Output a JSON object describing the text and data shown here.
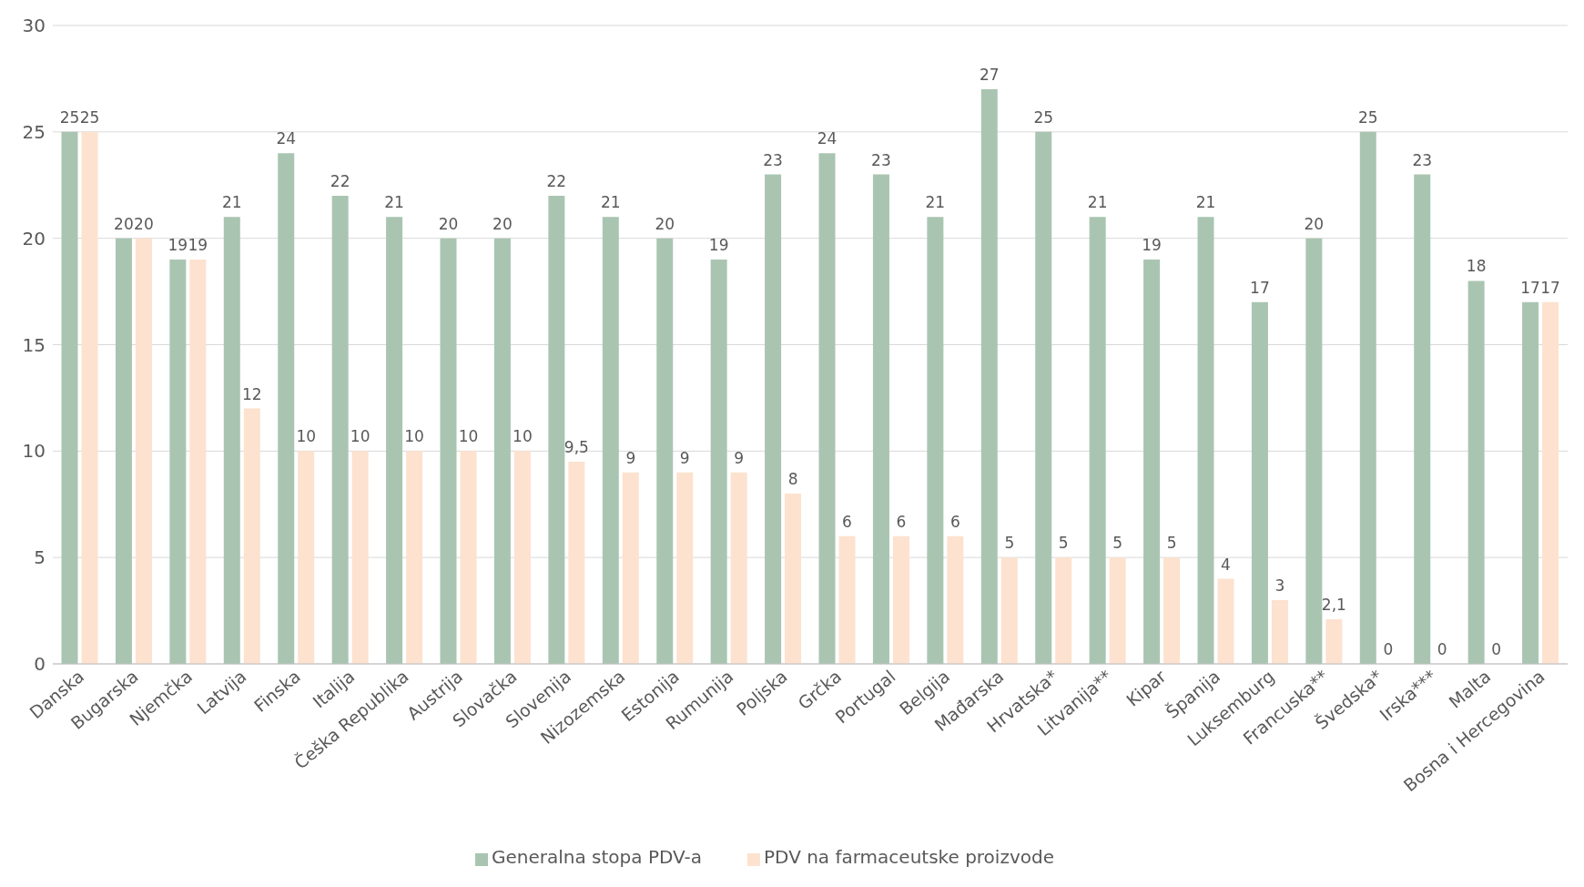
{
  "chart_data": {
    "type": "bar",
    "categories": [
      "Danska",
      "Bugarska",
      "Njemčka",
      "Latvija",
      "Finska",
      "Italija",
      "Češka Republika",
      "Austrija",
      "Slovačka",
      "Slovenija",
      "Nizozemska",
      "Estonija",
      "Rumunija",
      "Poljska",
      "Grčka",
      "Portugal",
      "Belgija",
      "Mađarska",
      "Hrvatska*",
      "Litvanija**",
      "Kipar",
      "Španija",
      "Luksemburg",
      "Francuska**",
      "Švedska*",
      "Irska***",
      "Malta",
      "Bosna i Hercegovina"
    ],
    "series": [
      {
        "name": "Generalna stopa PDV-a",
        "color": "#a9c5b1",
        "values": [
          25,
          20,
          19,
          21,
          24,
          22,
          21,
          20,
          20,
          22,
          21,
          20,
          19,
          23,
          24,
          23,
          21,
          27,
          25,
          21,
          19,
          21,
          17,
          20,
          25,
          23,
          18,
          17
        ],
        "value_labels": [
          "25",
          "20",
          "19",
          "21",
          "24",
          "22",
          "21",
          "20",
          "20",
          "22",
          "21",
          "20",
          "19",
          "23",
          "24",
          "23",
          "21",
          "27",
          "25",
          "21",
          "19",
          "21",
          "17",
          "20",
          "25",
          "23",
          "18",
          "17"
        ]
      },
      {
        "name": "PDV na farmaceutske proizvode",
        "color": "#fce2cf",
        "values": [
          25,
          20,
          19,
          12,
          10,
          10,
          10,
          10,
          10,
          9.5,
          9,
          9,
          9,
          8,
          6,
          6,
          6,
          5,
          5,
          5,
          5,
          4,
          3,
          2.1,
          0,
          0,
          0,
          17
        ],
        "value_labels": [
          "25",
          "20",
          "19",
          "12",
          "10",
          "10",
          "10",
          "10",
          "10",
          "9,5",
          "9",
          "9",
          "9",
          "8",
          "6",
          "6",
          "6",
          "5",
          "5",
          "5",
          "5",
          "4",
          "3",
          "2,1",
          "0",
          "0",
          "0",
          "17"
        ]
      }
    ],
    "ylim": [
      0,
      30
    ],
    "yticks": [
      0,
      5,
      10,
      15,
      20,
      25,
      30
    ],
    "grid": "y",
    "legend": "bottom"
  }
}
